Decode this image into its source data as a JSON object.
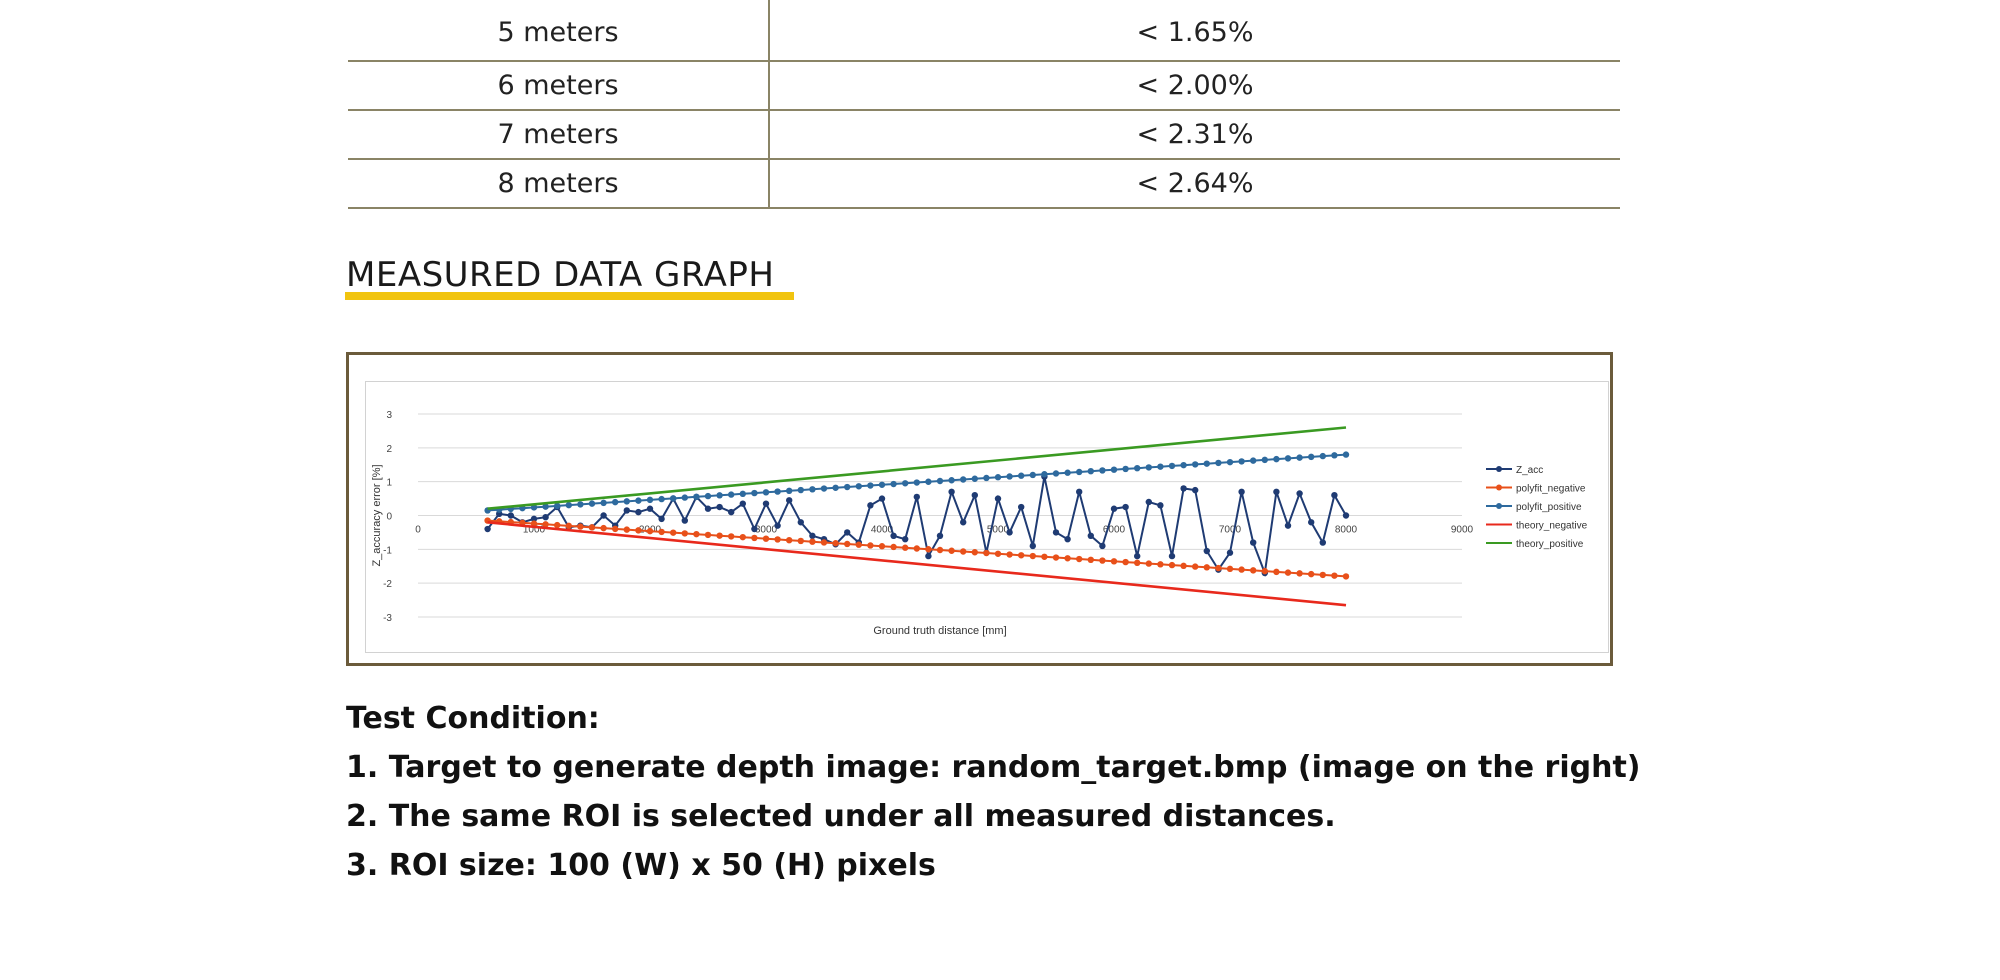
{
  "accuracy_table": {
    "rows": [
      {
        "distance": "5 meters",
        "error": "< 1.65%"
      },
      {
        "distance": "6 meters",
        "error": "< 2.00%"
      },
      {
        "distance": "7 meters",
        "error": "< 2.31%"
      },
      {
        "distance": "8 meters",
        "error": "< 2.64%"
      }
    ]
  },
  "section_title": "MEASURED DATA GRAPH",
  "colors": {
    "title_underline": "#f1c40f",
    "frame_border": "#6b5b3b",
    "z_acc": "#1f3b73",
    "polyfit_negative": "#e8501a",
    "polyfit_positive": "#2e6a9e",
    "theory_negative": "#e8291c",
    "theory_positive": "#3a9a22"
  },
  "chart_data": {
    "type": "line",
    "title": "",
    "xlabel": "Ground truth distance [mm]",
    "ylabel": "Z_accuracy error [%]",
    "xlim": [
      0,
      9000
    ],
    "ylim": [
      -3,
      3
    ],
    "x_ticks": [
      "0",
      "1000",
      "2000",
      "3000",
      "4000",
      "5000",
      "6000",
      "7000",
      "8000",
      "9000"
    ],
    "y_ticks": [
      "3",
      "2",
      "1",
      "0",
      "-1",
      "-2",
      "-3"
    ],
    "grid": true,
    "legend_position": "right",
    "series": [
      {
        "name": "Z_acc",
        "color": "#1f3b73",
        "marker": true,
        "x": [
          600,
          700,
          800,
          900,
          1000,
          1100,
          1200,
          1300,
          1400,
          1500,
          1600,
          1700,
          1800,
          1900,
          2000,
          2100,
          2200,
          2300,
          2400,
          2500,
          2600,
          2700,
          2800,
          2900,
          3000,
          3100,
          3200,
          3300,
          3400,
          3500,
          3600,
          3700,
          3800,
          3900,
          4000,
          4100,
          4200,
          4300,
          4400,
          4500,
          4600,
          4700,
          4800,
          4900,
          5000,
          5100,
          5200,
          5300,
          5400,
          5500,
          5600,
          5700,
          5800,
          5900,
          6000,
          6100,
          6200,
          6300,
          6400,
          6500,
          6600,
          6700,
          6800,
          6900,
          7000,
          7100,
          7200,
          7300,
          7400,
          7500,
          7600,
          7700,
          7800,
          7900,
          8000
        ],
        "values": [
          -0.4,
          0.05,
          0.0,
          -0.2,
          -0.1,
          -0.05,
          0.25,
          -0.35,
          -0.3,
          -0.35,
          0.0,
          -0.3,
          0.15,
          0.1,
          0.2,
          -0.1,
          0.5,
          -0.15,
          0.55,
          0.2,
          0.25,
          0.1,
          0.35,
          -0.4,
          0.35,
          -0.3,
          0.45,
          -0.2,
          -0.6,
          -0.7,
          -0.85,
          -0.5,
          -0.8,
          0.3,
          0.5,
          -0.6,
          -0.7,
          0.55,
          -1.2,
          -0.6,
          0.7,
          -0.2,
          0.6,
          -1.1,
          0.5,
          -0.5,
          0.25,
          -0.9,
          1.15,
          -0.5,
          -0.7,
          0.7,
          -0.6,
          -0.9,
          0.2,
          0.25,
          -1.2,
          0.4,
          0.3,
          -1.2,
          0.8,
          0.75,
          -1.05,
          -1.6,
          -1.1,
          0.7,
          -0.8,
          -1.7,
          0.7,
          -0.3,
          0.65,
          -0.2,
          -0.8,
          0.6,
          0.0
        ]
      },
      {
        "name": "polyfit_negative",
        "color": "#e8501a",
        "marker": true,
        "line_function": "linear",
        "x": [
          600,
          8000
        ],
        "values": [
          -0.15,
          -1.8
        ]
      },
      {
        "name": "polyfit_positive",
        "color": "#2e6a9e",
        "marker": true,
        "line_function": "linear",
        "x": [
          600,
          8000
        ],
        "values": [
          0.15,
          1.8
        ]
      },
      {
        "name": "theory_negative",
        "color": "#e8291c",
        "marker": false,
        "x": [
          600,
          8000
        ],
        "values": [
          -0.2,
          -2.65
        ]
      },
      {
        "name": "theory_positive",
        "color": "#3a9a22",
        "marker": false,
        "x": [
          600,
          8000
        ],
        "values": [
          0.2,
          2.6
        ]
      }
    ]
  },
  "test_condition": {
    "heading": "Test Condition:",
    "items": [
      "1. Target to generate depth image: random_target.bmp (image on the right)",
      "2. The same ROI is selected under all measured distances.",
      "3. ROI size: 100 (W) x 50 (H) pixels"
    ]
  }
}
